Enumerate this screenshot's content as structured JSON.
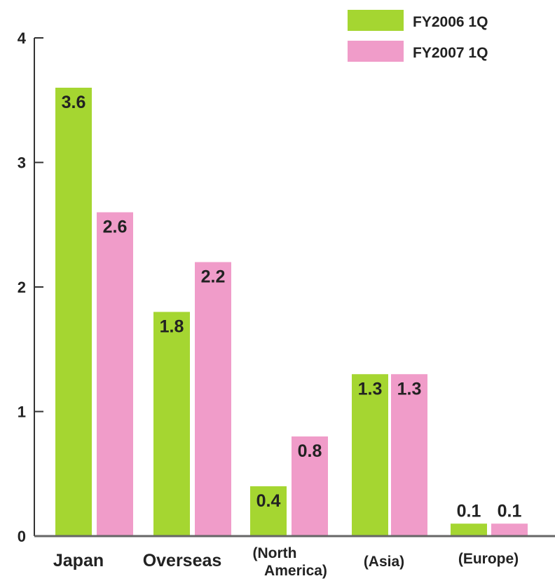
{
  "chart_data": {
    "type": "bar",
    "categories": [
      "Japan",
      "Overseas",
      "(North America)",
      "(Asia)",
      "(Europe)"
    ],
    "series": [
      {
        "name": "FY2006 1Q",
        "color": "#a5d631",
        "values": [
          3.6,
          1.8,
          0.4,
          1.3,
          0.1
        ]
      },
      {
        "name": "FY2007 1Q",
        "color": "#f09cc9",
        "values": [
          2.6,
          2.2,
          0.8,
          1.3,
          0.1
        ]
      }
    ],
    "data_labels": [
      [
        "3.6",
        "1.8",
        "0.4",
        "1.3",
        "0.1"
      ],
      [
        "2.6",
        "2.2",
        "0.8",
        "1.3",
        "0.1"
      ]
    ],
    "ylim": [
      0,
      4
    ],
    "yticks": [
      0,
      1,
      2,
      3,
      4
    ],
    "grid": false,
    "legend_position": "top-right"
  }
}
